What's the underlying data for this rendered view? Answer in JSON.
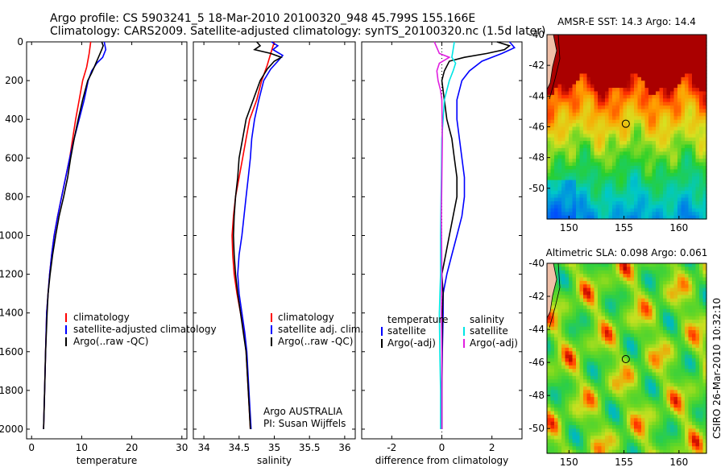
{
  "header": {
    "title_line1": "Argo profile: CS 5903241_5 18-Mar-2010 20100320_948 45.799S 155.166E",
    "title_line2": "Climatology: CARS2009. Satellite-adjusted climatology: synTS_20100320.nc (1.5d later)"
  },
  "side_note": "CSIRO 26-Mar-2010 10:32:10",
  "colors": {
    "climatology": "#ff0000",
    "satellite": "#0000ff",
    "argo": "#000000",
    "temp_satellite": "#0000ff",
    "sal_satellite": "#00e5e5",
    "sal_argo": "#e020e0"
  },
  "chart_data": [
    {
      "type": "line",
      "xlabel": "temperature",
      "xlim": [
        -1,
        31
      ],
      "xticks": [
        0,
        10,
        20,
        30
      ],
      "ylim": [
        0,
        2050
      ],
      "yticks": [
        0,
        200,
        400,
        600,
        800,
        1000,
        1200,
        1400,
        1600,
        1800,
        2000
      ],
      "y_reversed": true,
      "legend": [
        "climatology",
        "satellite-adjusted climatology",
        "Argo(..raw -QC)"
      ],
      "series": [
        {
          "name": "climatology",
          "color": "#ff0000",
          "points": [
            [
              11.8,
              0
            ],
            [
              11.5,
              60
            ],
            [
              11,
              130
            ],
            [
              10.2,
              200
            ],
            [
              9.5,
              300
            ],
            [
              8.8,
              400
            ],
            [
              8.2,
              500
            ],
            [
              7.6,
              600
            ],
            [
              6.8,
              700
            ],
            [
              6,
              800
            ],
            [
              5.2,
              900
            ],
            [
              4.5,
              1000
            ],
            [
              4,
              1100
            ],
            [
              3.6,
              1200
            ],
            [
              3.3,
              1300
            ],
            [
              3,
              1400
            ],
            [
              2.8,
              1600
            ],
            [
              2.6,
              1800
            ],
            [
              2.4,
              2000
            ]
          ]
        },
        {
          "name": "satellite-adjusted climatology",
          "color": "#0000ff",
          "points": [
            [
              14.5,
              0
            ],
            [
              14.8,
              40
            ],
            [
              14.2,
              80
            ],
            [
              13,
              110
            ],
            [
              12,
              150
            ],
            [
              11.3,
              200
            ],
            [
              10.5,
              300
            ],
            [
              9.5,
              400
            ],
            [
              8.5,
              500
            ],
            [
              7.6,
              600
            ],
            [
              6.8,
              700
            ],
            [
              6,
              800
            ],
            [
              5.2,
              900
            ],
            [
              4.5,
              1000
            ],
            [
              4,
              1100
            ],
            [
              3.6,
              1200
            ],
            [
              3.3,
              1300
            ],
            [
              3,
              1400
            ],
            [
              2.8,
              1600
            ],
            [
              2.6,
              1800
            ],
            [
              2.4,
              2000
            ]
          ]
        },
        {
          "name": "Argo(..raw -QC)",
          "color": "#000000",
          "points": [
            [
              14,
              0
            ],
            [
              14.3,
              20
            ],
            [
              14,
              40
            ],
            [
              13.5,
              70
            ],
            [
              13,
              100
            ],
            [
              12.5,
              130
            ],
            [
              12,
              160
            ],
            [
              11.2,
              200
            ],
            [
              10.2,
              300
            ],
            [
              9.3,
              400
            ],
            [
              8.5,
              500
            ],
            [
              7.8,
              600
            ],
            [
              7.2,
              700
            ],
            [
              6.4,
              800
            ],
            [
              5.5,
              900
            ],
            [
              4.8,
              1000
            ],
            [
              4.2,
              1100
            ],
            [
              3.7,
              1200
            ],
            [
              3.3,
              1300
            ],
            [
              3.1,
              1400
            ],
            [
              2.8,
              1600
            ],
            [
              2.6,
              1800
            ],
            [
              2.4,
              2000
            ]
          ]
        }
      ]
    },
    {
      "type": "line",
      "xlabel": "salinity",
      "xlim": [
        33.85,
        36.15
      ],
      "xticks": [
        34,
        34.5,
        35,
        35.5,
        36
      ],
      "ylim": [
        0,
        2050
      ],
      "y_reversed": true,
      "legend": [
        "climatology",
        "satellite adj. clim.",
        "Argo(..raw -QC)"
      ],
      "annotations": [
        "Argo AUSTRALIA",
        "PI: Susan Wijffels"
      ],
      "series": [
        {
          "name": "climatology",
          "color": "#ff0000",
          "points": [
            [
              35.0,
              0
            ],
            [
              34.95,
              60
            ],
            [
              34.9,
              120
            ],
            [
              34.82,
              200
            ],
            [
              34.75,
              300
            ],
            [
              34.65,
              400
            ],
            [
              34.6,
              500
            ],
            [
              34.55,
              600
            ],
            [
              34.5,
              700
            ],
            [
              34.45,
              800
            ],
            [
              34.42,
              900
            ],
            [
              34.4,
              1000
            ],
            [
              34.41,
              1100
            ],
            [
              34.43,
              1200
            ],
            [
              34.47,
              1300
            ],
            [
              34.52,
              1400
            ],
            [
              34.57,
              1500
            ],
            [
              34.6,
              1600
            ],
            [
              34.63,
              1800
            ],
            [
              34.66,
              2000
            ]
          ]
        },
        {
          "name": "satellite adj. clim.",
          "color": "#0000ff",
          "points": [
            [
              34.96,
              0
            ],
            [
              35.05,
              20
            ],
            [
              34.98,
              40
            ],
            [
              35.12,
              70
            ],
            [
              35.05,
              100
            ],
            [
              34.95,
              140
            ],
            [
              34.85,
              200
            ],
            [
              34.78,
              300
            ],
            [
              34.72,
              400
            ],
            [
              34.68,
              500
            ],
            [
              34.66,
              600
            ],
            [
              34.63,
              700
            ],
            [
              34.6,
              800
            ],
            [
              34.57,
              900
            ],
            [
              34.54,
              1000
            ],
            [
              34.5,
              1100
            ],
            [
              34.48,
              1200
            ],
            [
              34.5,
              1300
            ],
            [
              34.54,
              1400
            ],
            [
              34.58,
              1500
            ],
            [
              34.61,
              1600
            ],
            [
              34.64,
              1800
            ],
            [
              34.67,
              2000
            ]
          ]
        },
        {
          "name": "Argo(..raw -QC)",
          "color": "#000000",
          "points": [
            [
              34.75,
              0
            ],
            [
              34.8,
              20
            ],
            [
              34.72,
              40
            ],
            [
              34.95,
              60
            ],
            [
              35.1,
              80
            ],
            [
              35.0,
              100
            ],
            [
              34.9,
              140
            ],
            [
              34.8,
              200
            ],
            [
              34.7,
              300
            ],
            [
              34.6,
              400
            ],
            [
              34.55,
              500
            ],
            [
              34.5,
              600
            ],
            [
              34.48,
              700
            ],
            [
              34.45,
              800
            ],
            [
              34.43,
              900
            ],
            [
              34.42,
              1000
            ],
            [
              34.43,
              1100
            ],
            [
              34.45,
              1200
            ],
            [
              34.48,
              1300
            ],
            [
              34.52,
              1400
            ],
            [
              34.56,
              1500
            ],
            [
              34.6,
              1600
            ],
            [
              34.63,
              1800
            ],
            [
              34.66,
              2000
            ]
          ]
        }
      ]
    },
    {
      "type": "line",
      "xlabel": "difference from climatology",
      "xlim": [
        -3.2,
        3.2
      ],
      "xticks": [
        -2,
        0,
        2
      ],
      "ylim": [
        0,
        2050
      ],
      "y_reversed": true,
      "legend_groups": [
        {
          "title": "temperature",
          "entries": [
            "satellite",
            "Argo(-adj)"
          ]
        },
        {
          "title": "salinity",
          "entries": [
            "satellite",
            "Argo(-adj)"
          ]
        }
      ],
      "series": [
        {
          "name": "temperature satellite",
          "color": "#0000ff",
          "points": [
            [
              2.7,
              0
            ],
            [
              2.9,
              30
            ],
            [
              2.4,
              60
            ],
            [
              1.6,
              100
            ],
            [
              1.1,
              150
            ],
            [
              0.8,
              200
            ],
            [
              0.6,
              300
            ],
            [
              0.6,
              400
            ],
            [
              0.7,
              500
            ],
            [
              0.8,
              600
            ],
            [
              0.9,
              700
            ],
            [
              0.9,
              800
            ],
            [
              0.8,
              900
            ],
            [
              0.6,
              1000
            ],
            [
              0.4,
              1100
            ],
            [
              0.2,
              1200
            ],
            [
              0.05,
              1300
            ],
            [
              0.05,
              1400
            ],
            [
              0.02,
              1600
            ],
            [
              0.0,
              1800
            ],
            [
              0.0,
              2000
            ]
          ]
        },
        {
          "name": "temperature Argo(-adj)",
          "color": "#000000",
          "points": [
            [
              2.2,
              0
            ],
            [
              2.7,
              20
            ],
            [
              2.5,
              40
            ],
            [
              1.8,
              60
            ],
            [
              0.9,
              80
            ],
            [
              0.3,
              100
            ],
            [
              0.1,
              150
            ],
            [
              0.0,
              200
            ],
            [
              0.1,
              300
            ],
            [
              0.2,
              400
            ],
            [
              0.4,
              500
            ],
            [
              0.5,
              600
            ],
            [
              0.6,
              700
            ],
            [
              0.6,
              800
            ],
            [
              0.45,
              900
            ],
            [
              0.3,
              1000
            ],
            [
              0.15,
              1100
            ],
            [
              0.0,
              1200
            ],
            [
              0.05,
              1300
            ],
            [
              0.02,
              1400
            ],
            [
              0.01,
              1600
            ],
            [
              0.0,
              1800
            ],
            [
              0.0,
              2000
            ]
          ]
        },
        {
          "name": "salinity satellite",
          "color": "#00e5e5",
          "points": [
            [
              0.5,
              0
            ],
            [
              0.45,
              40
            ],
            [
              0.4,
              80
            ],
            [
              0.55,
              110
            ],
            [
              0.45,
              150
            ],
            [
              0.3,
              200
            ],
            [
              0.2,
              250
            ],
            [
              0.1,
              300
            ],
            [
              0.05,
              400
            ],
            [
              0.0,
              500
            ],
            [
              -0.02,
              700
            ],
            [
              -0.05,
              1000
            ],
            [
              -0.05,
              1200
            ],
            [
              -0.1,
              1400
            ],
            [
              -0.08,
              1600
            ],
            [
              -0.05,
              1800
            ],
            [
              -0.05,
              2000
            ]
          ]
        },
        {
          "name": "salinity Argo(-adj)",
          "color": "#e020e0",
          "points": [
            [
              -0.3,
              0
            ],
            [
              -0.2,
              30
            ],
            [
              -0.1,
              60
            ],
            [
              0.3,
              80
            ],
            [
              -0.1,
              110
            ],
            [
              -0.2,
              150
            ],
            [
              -0.15,
              200
            ],
            [
              -0.05,
              250
            ],
            [
              0.0,
              300
            ],
            [
              0.02,
              500
            ],
            [
              0.0,
              700
            ],
            [
              -0.02,
              900
            ],
            [
              0.0,
              1200
            ],
            [
              -0.02,
              1400
            ],
            [
              0.0,
              1600
            ],
            [
              0.0,
              2000
            ]
          ]
        }
      ]
    },
    {
      "type": "heatmap",
      "title": "AMSR-E SST: 14.3 Argo: 14.4",
      "xlim": [
        148,
        162.5
      ],
      "ylim": [
        -52,
        -40
      ],
      "xticks": [
        150,
        155,
        160
      ],
      "yticks": [
        -40,
        -42,
        -44,
        -46,
        -48,
        -50
      ],
      "marker": [
        155.166,
        -45.799
      ],
      "stops": [
        {
          "z": 0.0,
          "color": "#0046ff"
        },
        {
          "z": 0.28,
          "color": "#00c8c8"
        },
        {
          "z": 0.5,
          "color": "#2ad02a"
        },
        {
          "z": 0.66,
          "color": "#d8e020"
        },
        {
          "z": 0.8,
          "color": "#ffa000"
        },
        {
          "z": 0.92,
          "color": "#ff3000"
        },
        {
          "z": 1.0,
          "color": "#aa0000"
        }
      ]
    },
    {
      "type": "heatmap",
      "title": "Altimetric SLA: 0.098 Argo: 0.061",
      "xlim": [
        148,
        162.5
      ],
      "ylim": [
        -51.5,
        -40
      ],
      "xticks": [
        150,
        155,
        160
      ],
      "yticks": [
        -40,
        -42,
        -44,
        -46,
        -48,
        -50
      ],
      "marker": [
        155.166,
        -45.799
      ],
      "stops": [
        {
          "z": 0.0,
          "color": "#00b8c0"
        },
        {
          "z": 0.25,
          "color": "#30d040"
        },
        {
          "z": 0.5,
          "color": "#70d820"
        },
        {
          "z": 0.68,
          "color": "#c8e020"
        },
        {
          "z": 0.82,
          "color": "#ff9000"
        },
        {
          "z": 0.93,
          "color": "#ff3000"
        },
        {
          "z": 1.0,
          "color": "#b00000"
        }
      ]
    }
  ]
}
